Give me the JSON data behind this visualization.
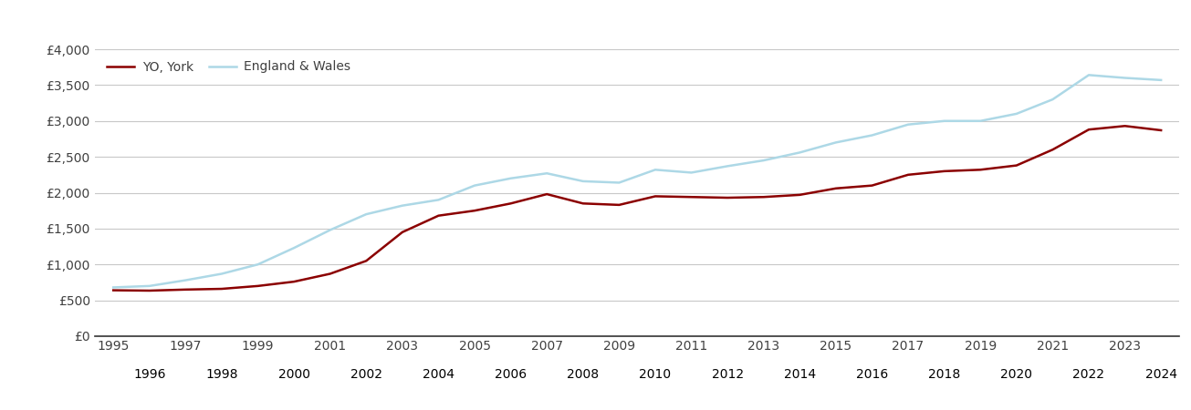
{
  "york_years": [
    1995,
    1996,
    1997,
    1998,
    1999,
    2000,
    2001,
    2002,
    2003,
    2004,
    2005,
    2006,
    2007,
    2008,
    2009,
    2010,
    2011,
    2012,
    2013,
    2014,
    2015,
    2016,
    2017,
    2018,
    2019,
    2020,
    2021,
    2022,
    2023,
    2024
  ],
  "york_values": [
    640,
    635,
    650,
    660,
    700,
    760,
    870,
    1050,
    1450,
    1680,
    1750,
    1850,
    1980,
    1850,
    1830,
    1950,
    1940,
    1930,
    1940,
    1970,
    2060,
    2100,
    2250,
    2300,
    2320,
    2380,
    2600,
    2880,
    2930,
    2870
  ],
  "ew_years": [
    1995,
    1996,
    1997,
    1998,
    1999,
    2000,
    2001,
    2002,
    2003,
    2004,
    2005,
    2006,
    2007,
    2008,
    2009,
    2010,
    2011,
    2012,
    2013,
    2014,
    2015,
    2016,
    2017,
    2018,
    2019,
    2020,
    2021,
    2022,
    2023,
    2024
  ],
  "ew_values": [
    680,
    700,
    780,
    870,
    1000,
    1230,
    1480,
    1700,
    1820,
    1900,
    2100,
    2200,
    2270,
    2160,
    2140,
    2320,
    2280,
    2370,
    2450,
    2560,
    2700,
    2800,
    2950,
    3000,
    3000,
    3100,
    3300,
    3640,
    3600,
    3570
  ],
  "york_color": "#8B0000",
  "ew_color": "#ADD8E6",
  "york_label": "YO, York",
  "ew_label": "England & Wales",
  "ylim": [
    0,
    4000
  ],
  "yticks": [
    0,
    500,
    1000,
    1500,
    2000,
    2500,
    3000,
    3500,
    4000
  ],
  "ytick_labels": [
    "£0",
    "£500",
    "£1,000",
    "£1,500",
    "£2,000",
    "£2,500",
    "£3,000",
    "£3,500",
    "£4,000"
  ],
  "xticks_odd": [
    1995,
    1997,
    1999,
    2001,
    2003,
    2005,
    2007,
    2009,
    2011,
    2013,
    2015,
    2017,
    2019,
    2021,
    2023
  ],
  "xticks_even": [
    1996,
    1998,
    2000,
    2002,
    2004,
    2006,
    2008,
    2010,
    2012,
    2014,
    2016,
    2018,
    2020,
    2022,
    2024
  ],
  "xlim_left": 1994.5,
  "xlim_right": 2024.5,
  "line_width": 1.8,
  "bg_color": "#FFFFFF",
  "grid_color": "#C8C8C8",
  "text_color": "#404040",
  "axis_color": "#333333",
  "font_size": 10,
  "legend_font_size": 10
}
